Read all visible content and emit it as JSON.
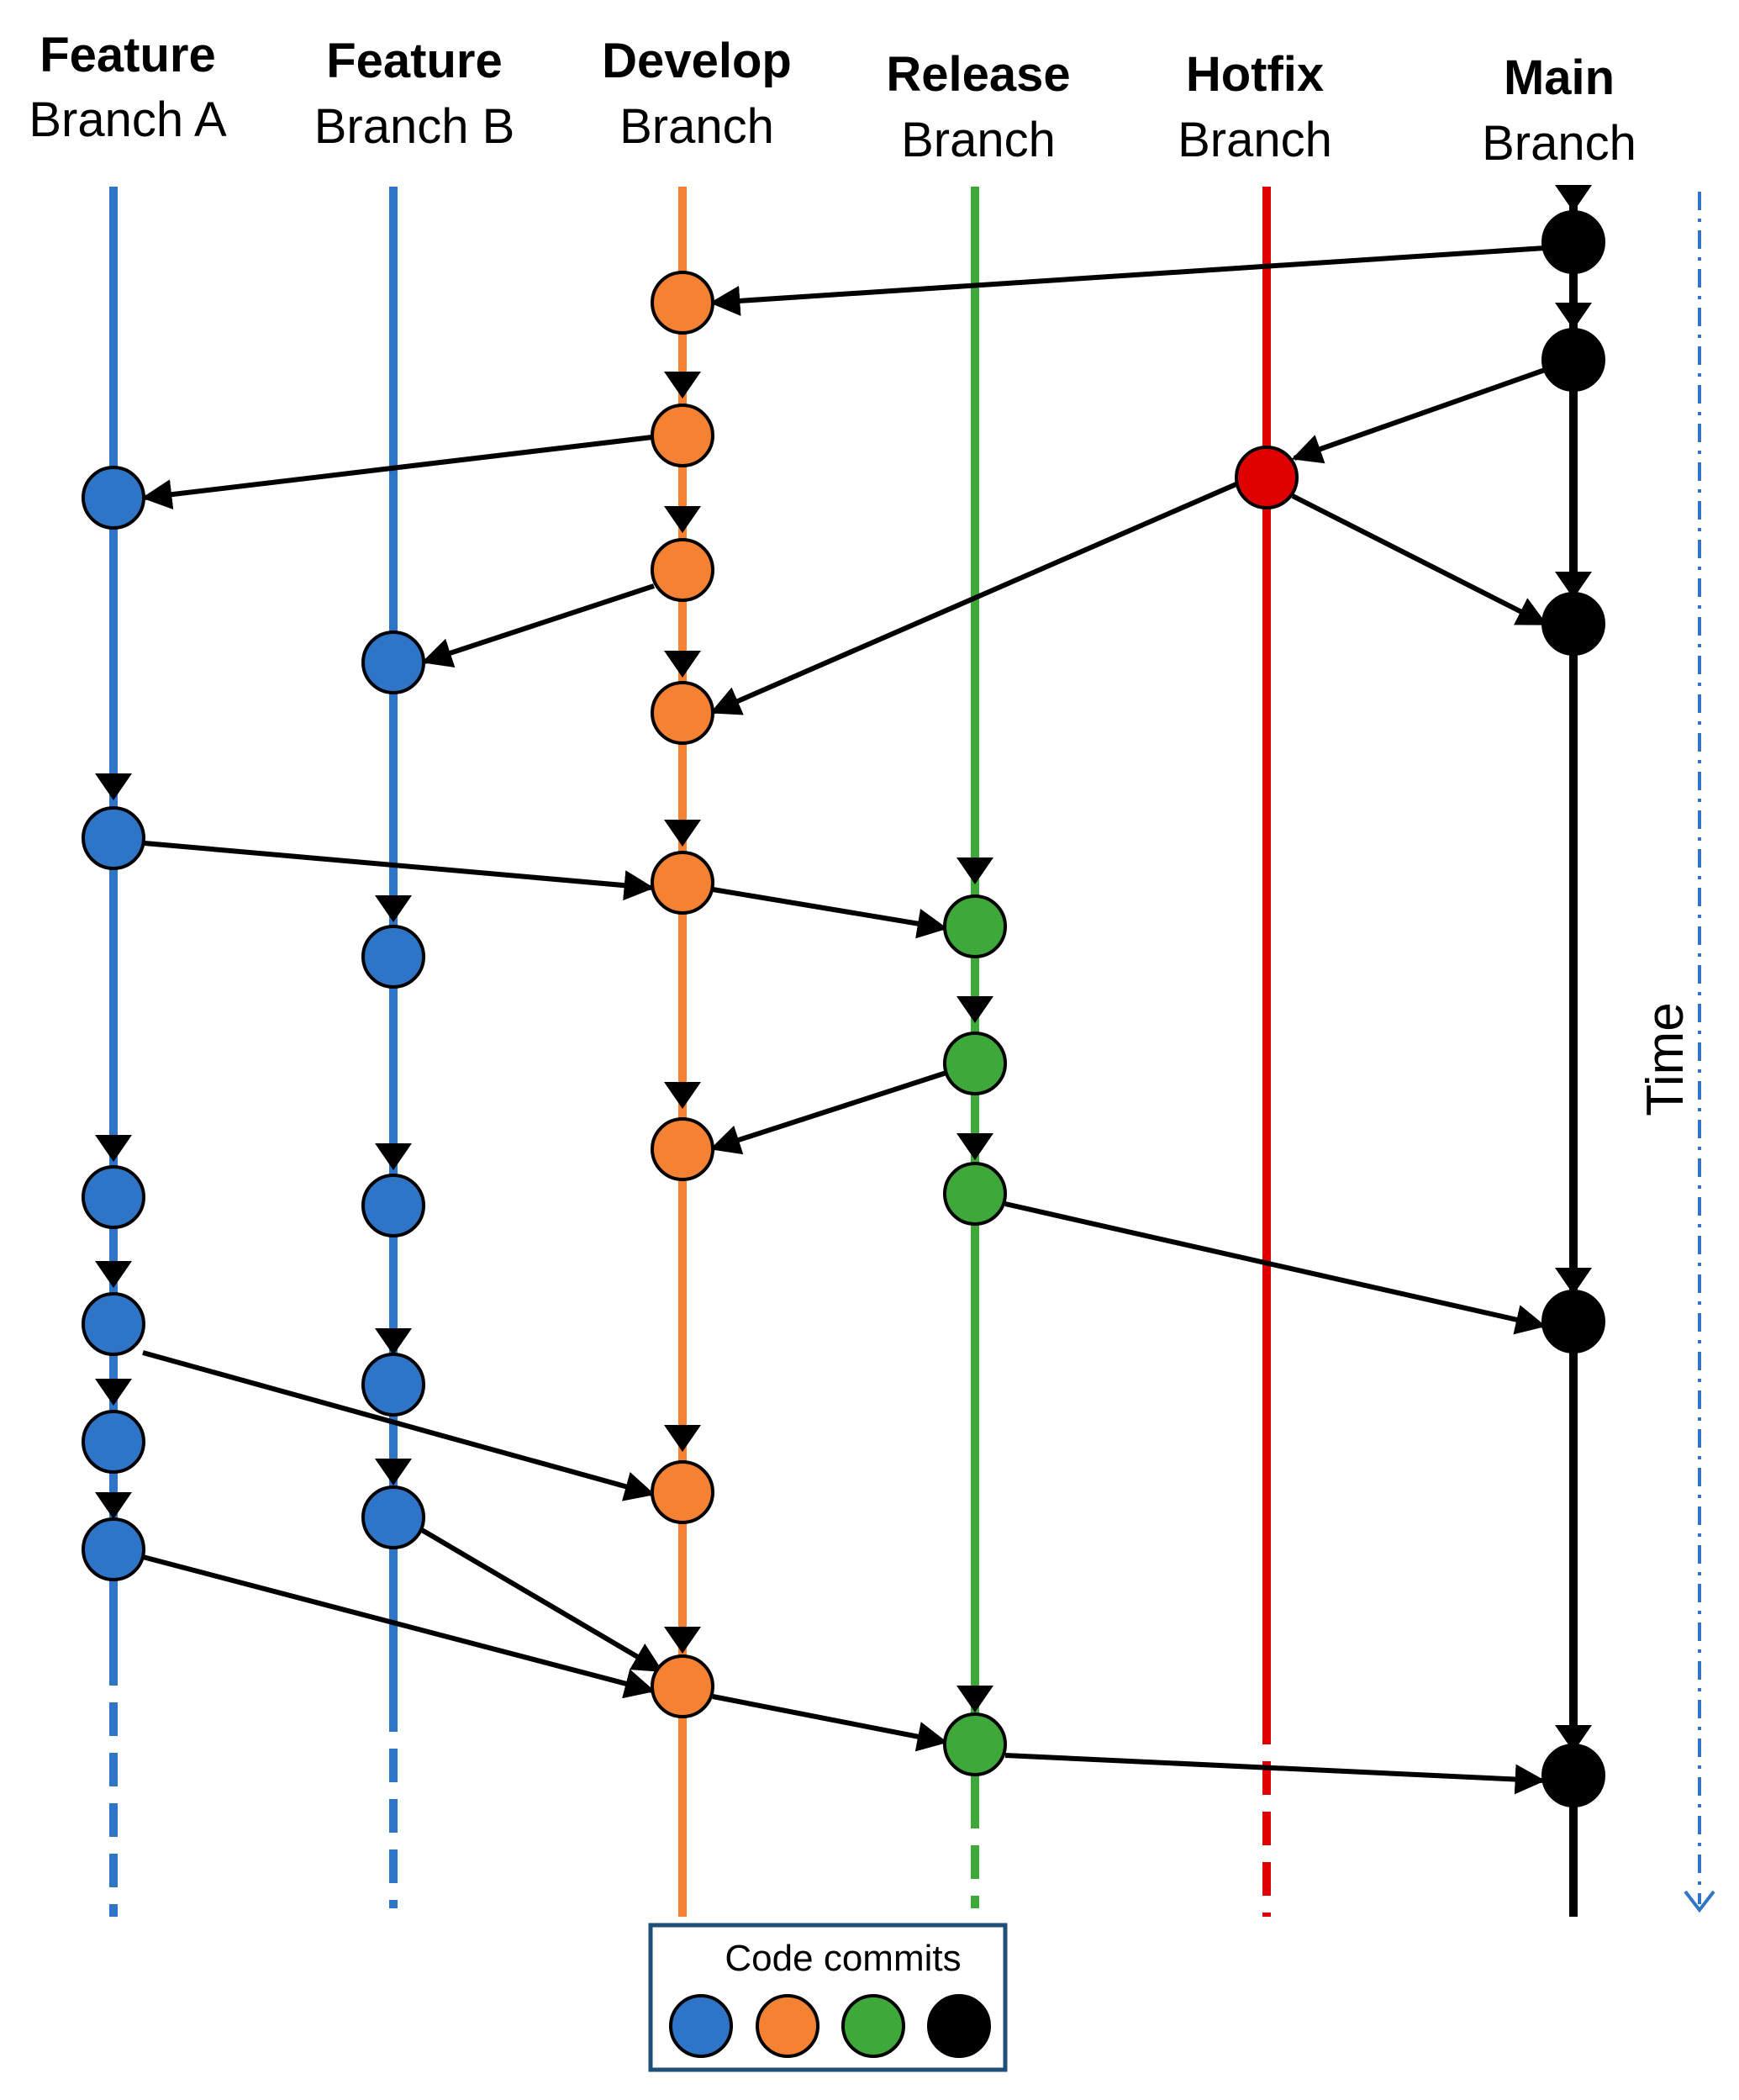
{
  "branches": [
    {
      "id": "feature_a",
      "title": "Feature",
      "subtitle": "Branch A",
      "color": "#2E75C8"
    },
    {
      "id": "feature_b",
      "title": "Feature",
      "subtitle": "Branch B",
      "color": "#2E75C8"
    },
    {
      "id": "develop",
      "title": "Develop",
      "subtitle": "Branch",
      "color": "#F58232"
    },
    {
      "id": "release",
      "title": "Release",
      "subtitle": "Branch",
      "color": "#3EA83A"
    },
    {
      "id": "hotfix",
      "title": "Hotfix",
      "subtitle": "Branch",
      "color": "#E00000"
    },
    {
      "id": "main",
      "title": "Main",
      "subtitle": "Branch",
      "color": "#000000"
    }
  ],
  "time_axis": {
    "label": "Time",
    "color": "#2E75C8"
  },
  "legend": {
    "title": "Code commits",
    "swatches": [
      "#2E75C8",
      "#F58232",
      "#3EA83A",
      "#000000"
    ]
  }
}
